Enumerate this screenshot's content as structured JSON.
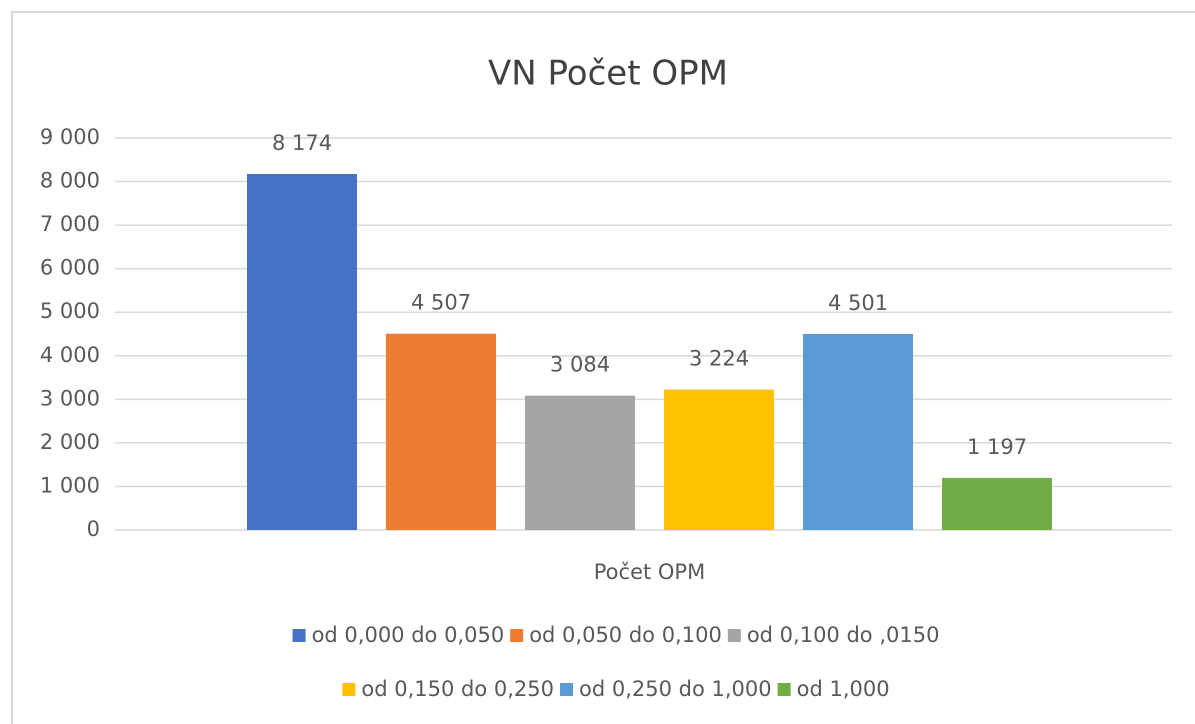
{
  "chart_data": {
    "type": "bar",
    "title": "VN Počet OPM",
    "categories": [
      "Počet OPM"
    ],
    "series": [
      {
        "name": "od 0,000 do 0,050",
        "color": "#4472c4",
        "values": [
          8174
        ],
        "value_labels": [
          "8 174"
        ]
      },
      {
        "name": "od 0,050 do 0,100",
        "color": "#ed7d31",
        "values": [
          4507
        ],
        "value_labels": [
          "4 507"
        ]
      },
      {
        "name": "od 0,100 do ,0150",
        "color": "#a5a5a5",
        "values": [
          3084
        ],
        "value_labels": [
          "3 084"
        ]
      },
      {
        "name": "od 0,150 do 0,250",
        "color": "#ffc000",
        "values": [
          3224
        ],
        "value_labels": [
          "3 224"
        ]
      },
      {
        "name": "od 0,250 do 1,000",
        "color": "#5b9bd5",
        "values": [
          4501
        ],
        "value_labels": [
          "4 501"
        ]
      },
      {
        "name": "od 1,000",
        "color": "#70ad47",
        "values": [
          1197
        ],
        "value_labels": [
          "1 197"
        ]
      }
    ],
    "ylim": [
      0,
      9000
    ],
    "yticks": [
      0,
      {
        "value": 1000,
        "label": "1 000"
      },
      {
        "value": 2000,
        "label": "2 000"
      },
      {
        "value": 3000,
        "label": "3 000"
      },
      {
        "value": 4000,
        "label": "4 000"
      },
      {
        "value": 5000,
        "label": "5 000"
      },
      {
        "value": 6000,
        "label": "6 000"
      },
      {
        "value": 7000,
        "label": "7 000"
      },
      {
        "value": 8000,
        "label": "8 000"
      },
      {
        "value": 9000,
        "label": "9 000"
      }
    ],
    "grid": true,
    "legend": "bottom"
  }
}
